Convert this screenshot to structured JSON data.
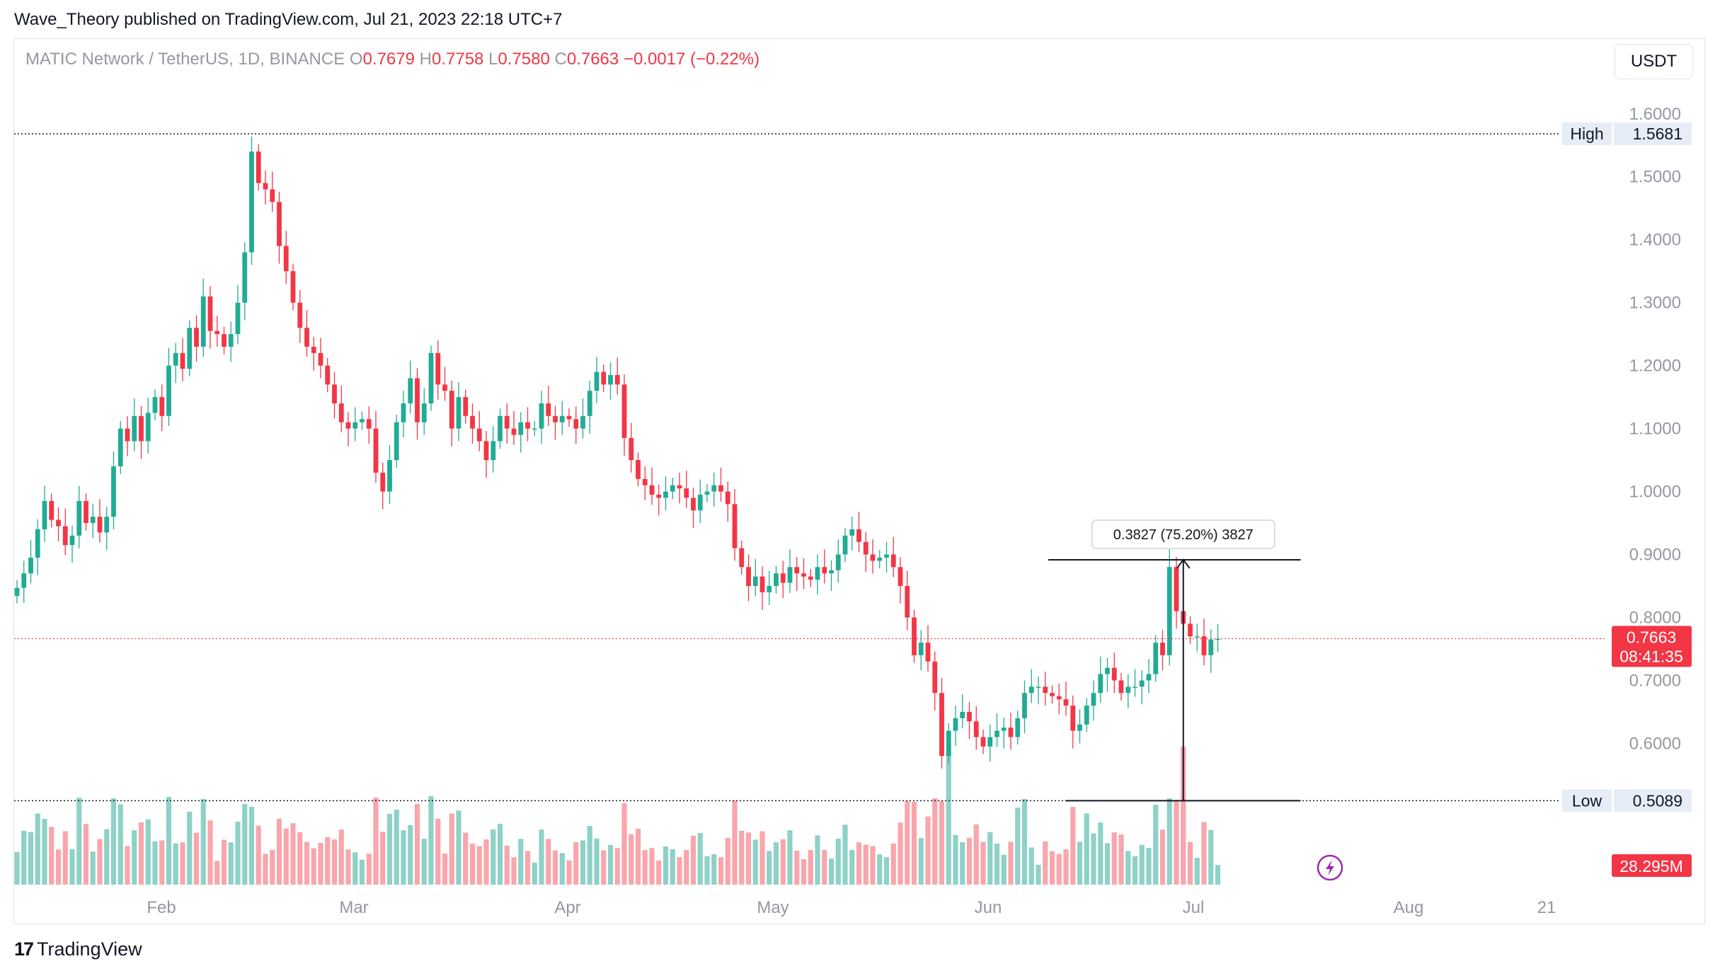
{
  "header": {
    "publisher_line": "Wave_Theory published on TradingView.com, Jul 21, 2023 22:18 UTC+7"
  },
  "legend": {
    "symbol": "MATIC Network / TetherUS, 1D, BINANCE",
    "o_label": "O",
    "o_value": "0.7679",
    "h_label": "H",
    "h_value": "0.7758",
    "l_label": "L",
    "l_value": "0.7580",
    "c_label": "C",
    "c_value": "0.7663",
    "change": "−0.0017 (−0.22%)"
  },
  "currency_button": "USDT",
  "footer": {
    "brand": "TradingView",
    "logo_glyph": "17"
  },
  "colors": {
    "up": "#22ab94",
    "down": "#f23645",
    "vol_up": "#8ed1c7",
    "vol_down": "#f8a6ac",
    "price_tag": "#f23645",
    "axis_text": "#9598a1"
  },
  "chart_data": {
    "type": "candlestick",
    "symbol": "MATICUSDT",
    "timeframe": "1D",
    "exchange": "BINANCE",
    "yaxis": {
      "ticks": [
        "1.6000",
        "1.5000",
        "1.4000",
        "1.3000",
        "1.2000",
        "1.1000",
        "1.0000",
        "0.9000",
        "0.8000",
        "0.7000",
        "0.6000"
      ],
      "range": [
        0.47,
        1.62
      ]
    },
    "xaxis": {
      "ticks": [
        "Feb",
        "Mar",
        "Apr",
        "May",
        "Jun",
        "Jul",
        "Aug",
        "21"
      ]
    },
    "x_start": "2023-01-09",
    "high_marker": {
      "label": "High",
      "value": "1.5681",
      "price": 1.5681
    },
    "low_marker": {
      "label": "Low",
      "value": "0.5089",
      "price": 0.5089
    },
    "last_price": {
      "value": "0.7663",
      "countdown": "08:41:35",
      "price": 0.7663
    },
    "volume_label": "28.295M",
    "measure": {
      "label": "0.3827 (75.20%) 3827",
      "from_price": 0.5089,
      "to_price": 0.8916,
      "from_date": "2023-06-10",
      "to_date": "2023-07-14"
    },
    "closes": [
      0.847,
      0.87,
      0.895,
      0.94,
      0.985,
      0.955,
      0.945,
      0.915,
      0.93,
      0.985,
      0.95,
      0.96,
      0.935,
      0.96,
      1.04,
      1.1,
      1.08,
      1.12,
      1.08,
      1.125,
      1.15,
      1.12,
      1.2,
      1.22,
      1.195,
      1.26,
      1.23,
      1.31,
      1.255,
      1.25,
      1.23,
      1.25,
      1.3,
      1.38,
      1.54,
      1.49,
      1.48,
      1.46,
      1.39,
      1.35,
      1.3,
      1.26,
      1.23,
      1.22,
      1.2,
      1.17,
      1.14,
      1.11,
      1.1,
      1.11,
      1.115,
      1.1,
      1.03,
      1.0,
      1.05,
      1.11,
      1.14,
      1.18,
      1.11,
      1.14,
      1.22,
      1.17,
      1.16,
      1.1,
      1.15,
      1.12,
      1.1,
      1.08,
      1.05,
      1.08,
      1.12,
      1.1,
      1.09,
      1.11,
      1.1,
      1.1,
      1.14,
      1.12,
      1.11,
      1.12,
      1.115,
      1.1,
      1.12,
      1.16,
      1.19,
      1.17,
      1.185,
      1.17,
      1.085,
      1.05,
      1.02,
      1.01,
      0.995,
      0.99,
      1.0,
      1.01,
      1.005,
      0.99,
      0.97,
      0.995,
      1.0,
      1.01,
      1.0,
      0.98,
      0.91,
      0.88,
      0.85,
      0.865,
      0.84,
      0.85,
      0.87,
      0.855,
      0.88,
      0.87,
      0.865,
      0.86,
      0.88,
      0.87,
      0.875,
      0.9,
      0.93,
      0.94,
      0.92,
      0.9,
      0.89,
      0.895,
      0.9,
      0.88,
      0.85,
      0.8,
      0.74,
      0.76,
      0.73,
      0.68,
      0.58,
      0.62,
      0.64,
      0.65,
      0.635,
      0.61,
      0.595,
      0.61,
      0.62,
      0.625,
      0.61,
      0.64,
      0.68,
      0.69,
      0.69,
      0.68,
      0.675,
      0.67,
      0.66,
      0.62,
      0.63,
      0.66,
      0.68,
      0.71,
      0.72,
      0.7,
      0.68,
      0.69,
      0.69,
      0.7,
      0.71,
      0.76,
      0.74,
      0.88,
      0.81,
      0.79,
      0.77,
      0.77,
      0.74,
      0.765,
      0.766
    ]
  }
}
